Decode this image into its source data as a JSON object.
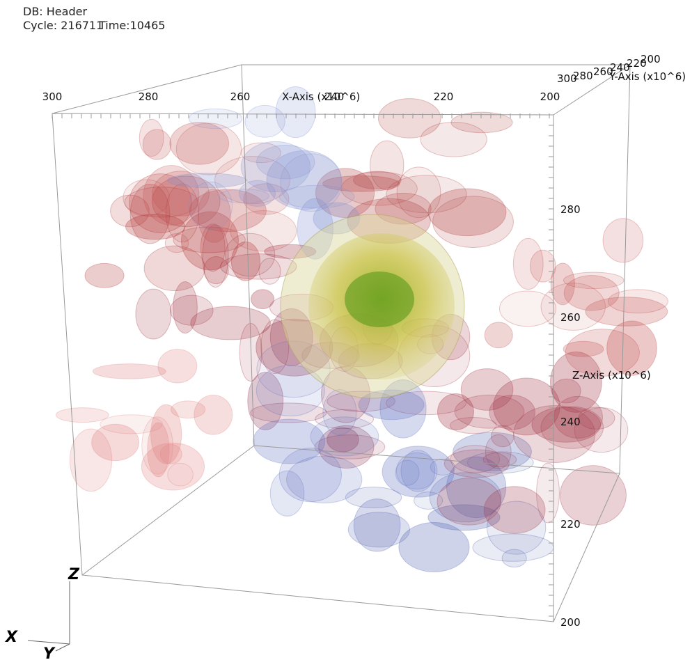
{
  "header": {
    "db": "DB: Header",
    "cycle": "Cycle: 216711",
    "time": "Time:10465"
  },
  "x_axis": {
    "label": "X-Axis (x10^6)",
    "ticks": [
      "300",
      "280",
      "260",
      "240",
      "220",
      "200"
    ]
  },
  "y_axis": {
    "label": "Y-Axis (x10^6)",
    "ticks": [
      "300",
      "280",
      "260",
      "240",
      "220",
      "200"
    ]
  },
  "z_axis": {
    "label": "Z-Axis (x10^6)",
    "ticks": [
      "280",
      "260",
      "240",
      "220",
      "200"
    ]
  },
  "triad": {
    "x": "X",
    "y": "Y",
    "z": "Z"
  }
}
